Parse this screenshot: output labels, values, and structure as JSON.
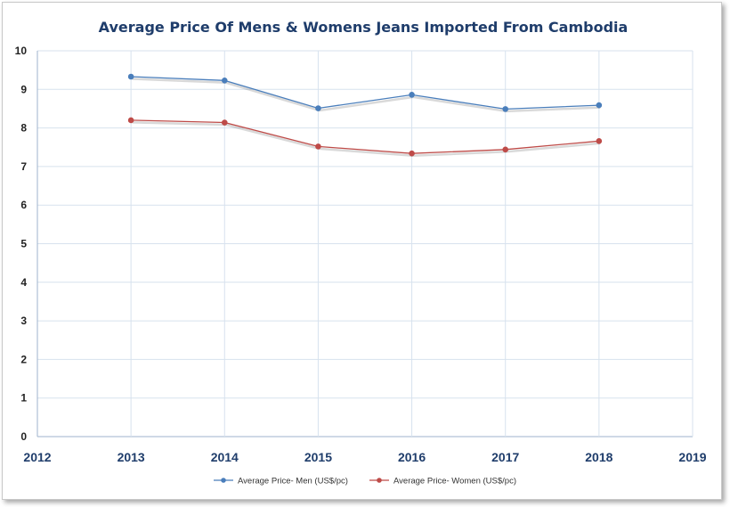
{
  "chart_data": {
    "type": "line",
    "title": "Average Price Of Mens & Womens Jeans Imported From Cambodia",
    "xlabel": "",
    "ylabel": "",
    "x": [
      2013,
      2014,
      2015,
      2016,
      2017,
      2018
    ],
    "xlim": [
      2012,
      2019
    ],
    "xticks": [
      "2012",
      "2013",
      "2014",
      "2015",
      "2016",
      "2017",
      "2018",
      "2019"
    ],
    "ylim": [
      0,
      10
    ],
    "yticks": [
      "0",
      "1",
      "2",
      "3",
      "4",
      "5",
      "6",
      "7",
      "8",
      "9",
      "10"
    ],
    "grid": true,
    "legend_position": "bottom",
    "series": [
      {
        "name": "Average Price- Men (US$/pc)",
        "color": "#4a7ebb",
        "values": [
          9.33,
          9.23,
          8.51,
          8.86,
          8.49,
          8.59
        ]
      },
      {
        "name": "Average Price- Women (US$/pc)",
        "color": "#be4b48",
        "values": [
          8.2,
          8.14,
          7.52,
          7.34,
          7.44,
          7.66
        ]
      }
    ]
  }
}
